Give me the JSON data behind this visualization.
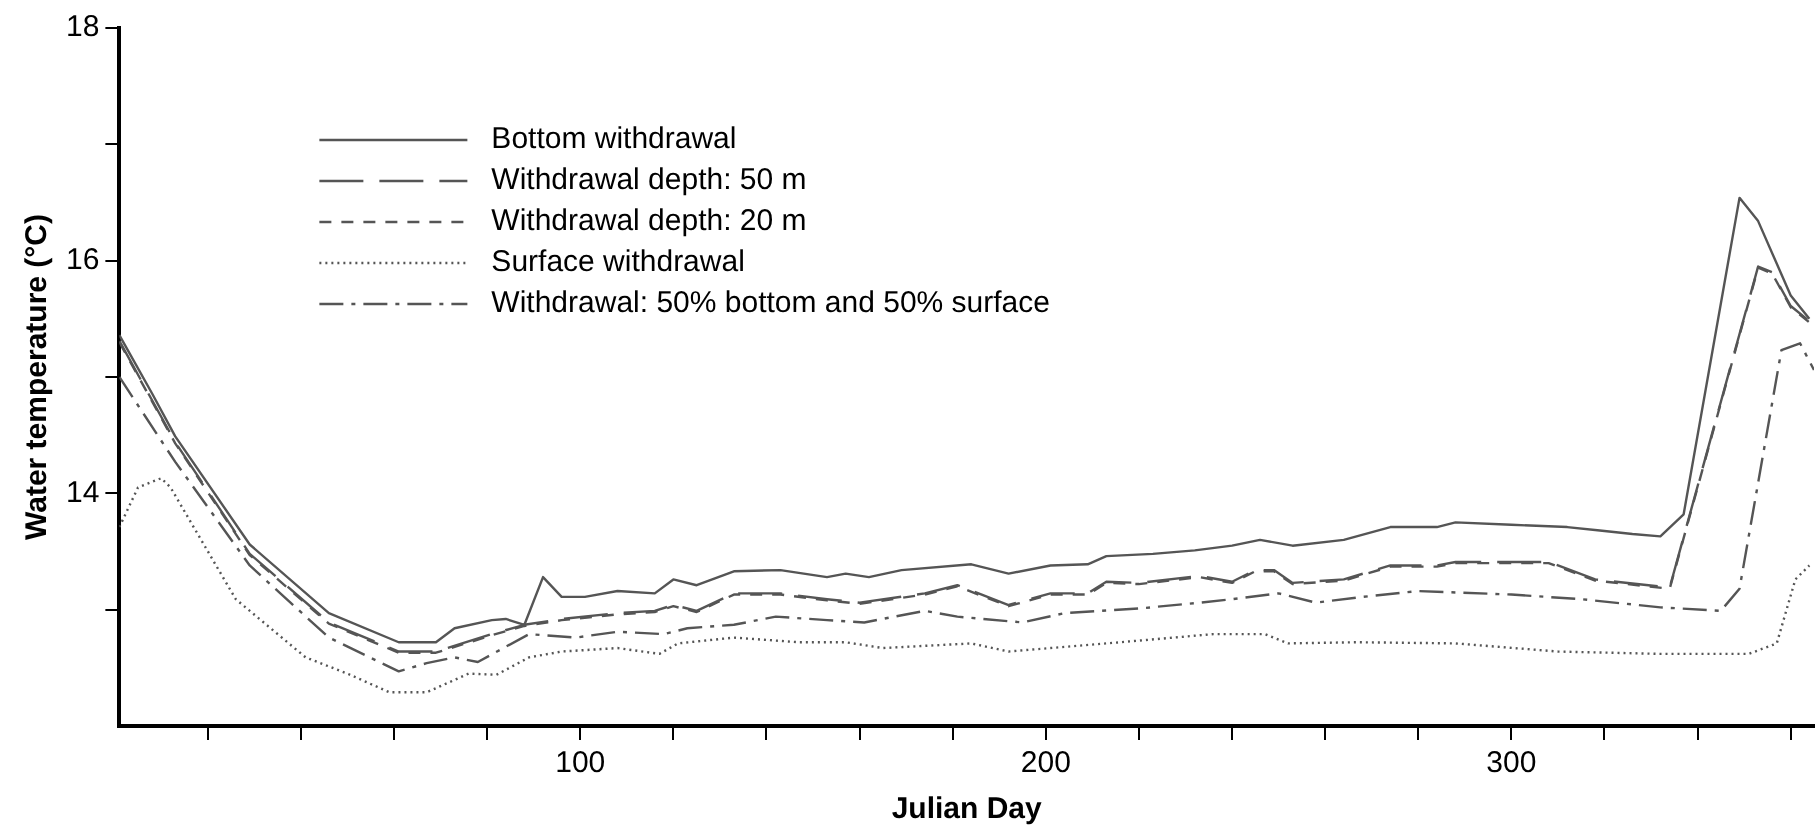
{
  "chart_data": {
    "type": "line",
    "xlabel": "Julian Day",
    "ylabel": "Water temperature (°C)",
    "xlim": [
      1,
      365
    ],
    "ylim": [
      12,
      18
    ],
    "xticks": [
      {
        "value": 20,
        "label": null
      },
      {
        "value": 40,
        "label": null
      },
      {
        "value": 60,
        "label": null
      },
      {
        "value": 80,
        "label": null
      },
      100,
      {
        "value": 120,
        "label": null
      },
      {
        "value": 140,
        "label": null
      },
      {
        "value": 160,
        "label": null
      },
      {
        "value": 180,
        "label": null
      },
      200,
      {
        "value": 220,
        "label": null
      },
      {
        "value": 240,
        "label": null
      },
      {
        "value": 260,
        "label": null
      },
      {
        "value": 280,
        "label": null
      },
      300,
      {
        "value": 320,
        "label": null
      },
      {
        "value": 340,
        "label": null
      },
      {
        "value": 360,
        "label": null
      }
    ],
    "yticks": [
      {
        "value": 13,
        "label": null
      },
      14,
      {
        "value": 15,
        "label": null
      },
      16,
      {
        "value": 17,
        "label": null
      },
      18
    ],
    "grid": false,
    "legend": "top left",
    "marker": "none",
    "series": [
      {
        "name": "Bottom withdrawal",
        "color": "#555555",
        "line_style": "solid",
        "x": [
          1,
          8,
          13,
          29,
          46,
          61,
          69,
          73,
          81,
          84,
          88,
          92,
          96,
          101,
          108,
          116,
          120,
          125,
          133,
          143,
          153,
          157,
          162,
          169,
          184,
          192,
          201,
          209,
          213,
          223,
          232,
          240,
          246,
          253,
          264,
          274,
          284,
          288,
          300,
          312,
          319,
          326,
          332,
          337,
          349,
          353,
          360,
          364
        ],
        "values": [
          15.36,
          14.86,
          14.49,
          13.56,
          12.97,
          12.72,
          12.72,
          12.84,
          12.91,
          12.92,
          12.87,
          13.28,
          13.11,
          13.11,
          13.16,
          13.14,
          13.26,
          13.21,
          13.33,
          13.34,
          13.28,
          13.31,
          13.28,
          13.34,
          13.39,
          13.31,
          13.38,
          13.39,
          13.46,
          13.48,
          13.51,
          13.55,
          13.6,
          13.55,
          13.6,
          13.71,
          13.71,
          13.75,
          13.73,
          13.71,
          13.68,
          13.65,
          13.63,
          13.82,
          16.54,
          16.34,
          15.7,
          15.5
        ]
      },
      {
        "name": "Withdrawal depth: 50 m",
        "color": "#555555",
        "line_style": "longdash",
        "x": [
          1,
          13,
          29,
          46,
          61,
          69,
          81,
          88,
          96,
          108,
          116,
          120,
          125,
          133,
          143,
          153,
          160,
          174,
          181,
          192,
          201,
          209,
          213,
          220,
          233,
          240,
          245,
          249,
          253,
          264,
          274,
          284,
          288,
          308,
          318,
          334,
          353,
          356,
          360,
          364
        ],
        "values": [
          15.31,
          14.44,
          13.48,
          12.89,
          12.64,
          12.64,
          12.79,
          12.87,
          12.92,
          12.97,
          12.99,
          13.04,
          12.99,
          13.14,
          13.14,
          13.09,
          13.06,
          13.14,
          13.21,
          13.04,
          13.14,
          13.14,
          13.24,
          13.23,
          13.29,
          13.24,
          13.34,
          13.34,
          13.23,
          13.26,
          13.38,
          13.38,
          13.41,
          13.41,
          13.26,
          13.19,
          15.95,
          15.9,
          15.61,
          15.48
        ]
      },
      {
        "name": "Withdrawal depth: 20 m",
        "color": "#555555",
        "line_style": "dashed",
        "x": [
          1,
          13,
          29,
          46,
          61,
          69,
          81,
          88,
          96,
          108,
          116,
          120,
          125,
          133,
          143,
          153,
          160,
          174,
          181,
          192,
          201,
          209,
          213,
          220,
          233,
          240,
          245,
          249,
          253,
          264,
          274,
          284,
          288,
          308,
          318,
          334,
          353,
          356,
          360,
          364
        ],
        "values": [
          15.3,
          14.43,
          13.47,
          12.88,
          12.63,
          12.63,
          12.78,
          12.86,
          12.91,
          12.96,
          12.98,
          13.03,
          12.98,
          13.13,
          13.13,
          13.08,
          13.05,
          13.13,
          13.2,
          13.03,
          13.13,
          13.13,
          13.23,
          13.22,
          13.28,
          13.23,
          13.33,
          13.33,
          13.22,
          13.25,
          13.37,
          13.37,
          13.4,
          13.4,
          13.25,
          13.18,
          15.94,
          15.89,
          15.6,
          15.47
        ]
      },
      {
        "name": "Surface withdrawal",
        "color": "#555555",
        "line_style": "dotted",
        "x": [
          1,
          5,
          10,
          12,
          26,
          41,
          50,
          59,
          67,
          76,
          82,
          89,
          96,
          108,
          117,
          121,
          133,
          147,
          157,
          165,
          184,
          192,
          201,
          216,
          236,
          247,
          252,
          267,
          288,
          310,
          332,
          351,
          357,
          361,
          364
        ],
        "values": [
          13.71,
          14.05,
          14.13,
          14.05,
          13.09,
          12.59,
          12.45,
          12.29,
          12.29,
          12.45,
          12.44,
          12.59,
          12.64,
          12.67,
          12.62,
          12.71,
          12.76,
          12.72,
          12.72,
          12.67,
          12.71,
          12.64,
          12.67,
          12.72,
          12.79,
          12.79,
          12.71,
          12.72,
          12.71,
          12.64,
          12.62,
          12.62,
          12.71,
          13.26,
          13.38
        ]
      },
      {
        "name": "Withdrawal: 50% bottom and 50% surface",
        "color": "#555555",
        "line_style": "dashdot",
        "x": [
          1,
          13,
          29,
          46,
          61,
          67,
          73,
          78,
          89,
          99,
          108,
          118,
          123,
          133,
          142,
          153,
          161,
          174,
          181,
          195,
          204,
          220,
          233,
          240,
          250,
          258,
          268,
          280,
          300,
          315,
          332,
          345,
          349,
          358,
          362,
          365
        ],
        "values": [
          15.0,
          14.27,
          13.38,
          12.76,
          12.47,
          12.54,
          12.59,
          12.55,
          12.79,
          12.76,
          12.81,
          12.79,
          12.84,
          12.87,
          12.94,
          12.91,
          12.89,
          12.99,
          12.94,
          12.89,
          12.97,
          13.01,
          13.06,
          13.09,
          13.14,
          13.06,
          13.11,
          13.16,
          13.13,
          13.09,
          13.02,
          12.99,
          13.18,
          15.23,
          15.29,
          15.06
        ]
      }
    ]
  }
}
